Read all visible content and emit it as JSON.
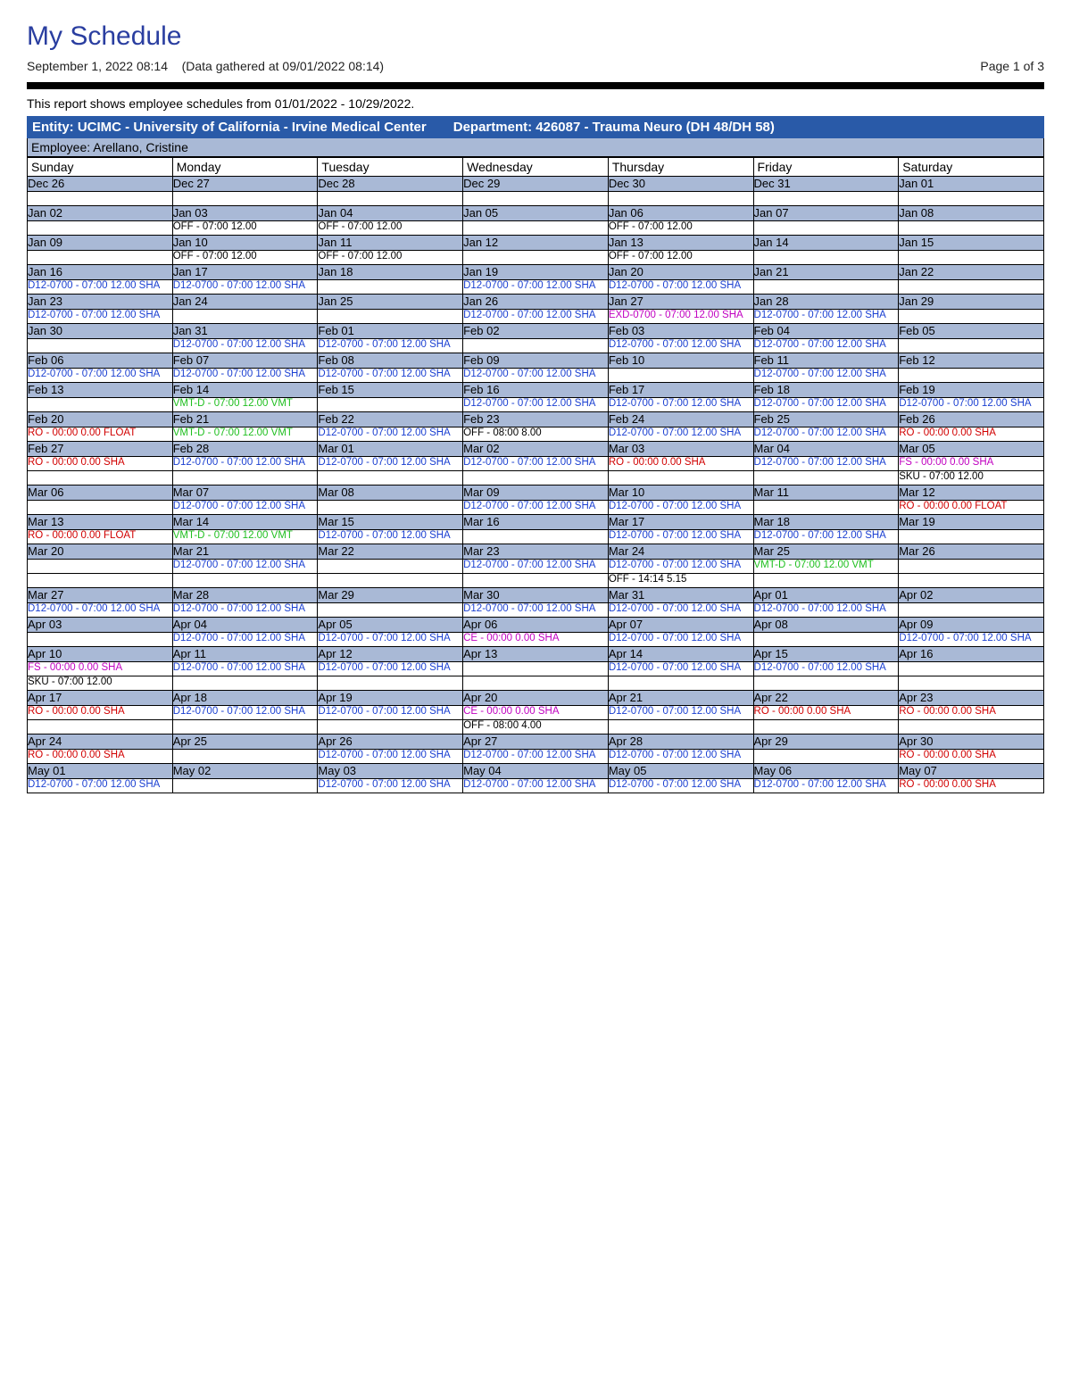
{
  "title": "My Schedule",
  "timestamp": "September 1, 2022 08:14",
  "gathered": "(Data gathered at 09/01/2022 08:14)",
  "page_label": "Page 1 of 3",
  "description": "This report shows employee schedules from 01/01/2022 - 10/29/2022.",
  "entity_label": "Entity: UCIMC - University of California - Irvine Medical Center",
  "department_label": "Department:  426087 - Trauma Neuro (DH 48/DH 58)",
  "employee_label": "Employee: Arellano, Cristine",
  "colors": {
    "title": "#2a3ea0",
    "entity_bg": "#295aa8",
    "date_bg": "#a9b9d6",
    "ev_blue": "#1a3fd1",
    "ev_red": "#d10000",
    "ev_green": "#1fbf1f",
    "ev_magenta": "#c000c0",
    "ev_black": "#000000"
  },
  "day_headers": [
    "Sunday",
    "Monday",
    "Tuesday",
    "Wednesday",
    "Thursday",
    "Friday",
    "Saturday"
  ],
  "weeks": [
    {
      "dates": [
        "Dec 26",
        "Dec 27",
        "Dec 28",
        "Dec 29",
        "Dec 30",
        "Dec 31",
        "Jan 01"
      ],
      "rows": [
        [
          "",
          "",
          "",
          "",
          "",
          "",
          ""
        ]
      ]
    },
    {
      "dates": [
        "Jan 02",
        "Jan 03",
        "Jan 04",
        "Jan 05",
        "Jan 06",
        "Jan 07",
        "Jan 08"
      ],
      "rows": [
        [
          "",
          {
            "t": "OFF - 07:00 12.00",
            "c": "black"
          },
          {
            "t": "OFF - 07:00 12.00",
            "c": "black"
          },
          "",
          {
            "t": "OFF - 07:00 12.00",
            "c": "black"
          },
          "",
          ""
        ]
      ]
    },
    {
      "dates": [
        "Jan 09",
        "Jan 10",
        "Jan 11",
        "Jan 12",
        "Jan 13",
        "Jan 14",
        "Jan 15"
      ],
      "rows": [
        [
          "",
          {
            "t": "OFF - 07:00 12.00",
            "c": "black"
          },
          {
            "t": "OFF - 07:00 12.00",
            "c": "black"
          },
          "",
          {
            "t": "OFF - 07:00 12.00",
            "c": "black"
          },
          "",
          ""
        ]
      ]
    },
    {
      "dates": [
        "Jan 16",
        "Jan 17",
        "Jan 18",
        "Jan 19",
        "Jan 20",
        "Jan 21",
        "Jan 22"
      ],
      "rows": [
        [
          {
            "t": "D12-0700 - 07:00 12.00  SHA",
            "c": "blue"
          },
          {
            "t": "D12-0700 - 07:00 12.00  SHA",
            "c": "blue"
          },
          "",
          {
            "t": "D12-0700 - 07:00 12.00  SHA",
            "c": "blue"
          },
          {
            "t": "D12-0700 - 07:00 12.00  SHA",
            "c": "blue"
          },
          "",
          ""
        ]
      ]
    },
    {
      "dates": [
        "Jan 23",
        "Jan 24",
        "Jan 25",
        "Jan 26",
        "Jan 27",
        "Jan 28",
        "Jan 29"
      ],
      "rows": [
        [
          {
            "t": "D12-0700 - 07:00 12.00  SHA",
            "c": "blue"
          },
          "",
          "",
          {
            "t": "D12-0700 - 07:00 12.00  SHA",
            "c": "blue"
          },
          {
            "t": "EXD-0700 - 07:00 12.00  SHA",
            "c": "magenta"
          },
          {
            "t": "D12-0700 - 07:00 12.00  SHA",
            "c": "blue"
          },
          ""
        ]
      ]
    },
    {
      "dates": [
        "Jan 30",
        "Jan 31",
        "Feb 01",
        "Feb 02",
        "Feb 03",
        "Feb 04",
        "Feb 05"
      ],
      "rows": [
        [
          "",
          {
            "t": "D12-0700 - 07:00 12.00  SHA",
            "c": "blue"
          },
          {
            "t": "D12-0700 - 07:00 12.00  SHA",
            "c": "blue"
          },
          "",
          {
            "t": "D12-0700 - 07:00 12.00  SHA",
            "c": "blue"
          },
          {
            "t": "D12-0700 - 07:00 12.00  SHA",
            "c": "blue"
          },
          ""
        ]
      ]
    },
    {
      "dates": [
        "Feb 06",
        "Feb 07",
        "Feb 08",
        "Feb 09",
        "Feb 10",
        "Feb 11",
        "Feb 12"
      ],
      "rows": [
        [
          {
            "t": "D12-0700 - 07:00 12.00  SHA",
            "c": "blue"
          },
          {
            "t": "D12-0700 - 07:00 12.00  SHA",
            "c": "blue"
          },
          {
            "t": "D12-0700 - 07:00 12.00  SHA",
            "c": "blue"
          },
          {
            "t": "D12-0700 - 07:00 12.00  SHA",
            "c": "blue"
          },
          "",
          {
            "t": "D12-0700 - 07:00 12.00  SHA",
            "c": "blue"
          },
          ""
        ]
      ]
    },
    {
      "dates": [
        "Feb 13",
        "Feb 14",
        "Feb 15",
        "Feb 16",
        "Feb 17",
        "Feb 18",
        "Feb 19"
      ],
      "rows": [
        [
          "",
          {
            "t": "VMT-D - 07:00 12.00  VMT",
            "c": "green"
          },
          "",
          {
            "t": "D12-0700 - 07:00 12.00  SHA",
            "c": "blue"
          },
          {
            "t": "D12-0700 - 07:00 12.00  SHA",
            "c": "blue"
          },
          {
            "t": "D12-0700 - 07:00 12.00  SHA",
            "c": "blue"
          },
          {
            "t": "D12-0700 - 07:00 12.00  SHA",
            "c": "blue"
          }
        ]
      ]
    },
    {
      "dates": [
        "Feb 20",
        "Feb 21",
        "Feb 22",
        "Feb 23",
        "Feb 24",
        "Feb 25",
        "Feb 26"
      ],
      "rows": [
        [
          {
            "t": "RO - 00:00 0.00  FLOAT",
            "c": "red"
          },
          {
            "t": "VMT-D - 07:00 12.00  VMT",
            "c": "green"
          },
          {
            "t": "D12-0700 - 07:00 12.00  SHA",
            "c": "blue"
          },
          {
            "t": "OFF - 08:00 8.00",
            "c": "black"
          },
          {
            "t": "D12-0700 - 07:00 12.00  SHA",
            "c": "blue"
          },
          {
            "t": "D12-0700 - 07:00 12.00  SHA",
            "c": "blue"
          },
          {
            "t": "RO - 00:00 0.00  SHA",
            "c": "red"
          }
        ]
      ]
    },
    {
      "dates": [
        "Feb 27",
        "Feb 28",
        "Mar 01",
        "Mar 02",
        "Mar 03",
        "Mar 04",
        "Mar 05"
      ],
      "rows": [
        [
          {
            "t": "RO - 00:00 0.00  SHA",
            "c": "red"
          },
          {
            "t": "D12-0700 - 07:00 12.00  SHA",
            "c": "blue"
          },
          {
            "t": "D12-0700 - 07:00 12.00  SHA",
            "c": "blue"
          },
          {
            "t": "D12-0700 - 07:00 12.00  SHA",
            "c": "blue"
          },
          {
            "t": "RO - 00:00 0.00  SHA",
            "c": "red"
          },
          {
            "t": "D12-0700 - 07:00 12.00  SHA",
            "c": "blue"
          },
          {
            "t": "FS - 00:00 0.00  SHA",
            "c": "magenta"
          }
        ],
        [
          "",
          "",
          "",
          "",
          "",
          "",
          {
            "t": "SKU - 07:00 12.00",
            "c": "black"
          }
        ]
      ]
    },
    {
      "dates": [
        "Mar 06",
        "Mar 07",
        "Mar 08",
        "Mar 09",
        "Mar 10",
        "Mar 11",
        "Mar 12"
      ],
      "rows": [
        [
          "",
          {
            "t": "D12-0700 - 07:00 12.00  SHA",
            "c": "blue"
          },
          "",
          {
            "t": "D12-0700 - 07:00 12.00  SHA",
            "c": "blue"
          },
          {
            "t": "D12-0700 - 07:00 12.00  SHA",
            "c": "blue"
          },
          "",
          {
            "t": "RO - 00:00 0.00  FLOAT",
            "c": "red"
          }
        ]
      ]
    },
    {
      "dates": [
        "Mar 13",
        "Mar 14",
        "Mar 15",
        "Mar 16",
        "Mar 17",
        "Mar 18",
        "Mar 19"
      ],
      "rows": [
        [
          {
            "t": "RO - 00:00 0.00  FLOAT",
            "c": "red"
          },
          {
            "t": "VMT-D - 07:00 12.00  VMT",
            "c": "green"
          },
          {
            "t": "D12-0700 - 07:00 12.00  SHA",
            "c": "blue"
          },
          "",
          {
            "t": "D12-0700 - 07:00 12.00  SHA",
            "c": "blue"
          },
          {
            "t": "D12-0700 - 07:00 12.00  SHA",
            "c": "blue"
          },
          ""
        ]
      ]
    },
    {
      "dates": [
        "Mar 20",
        "Mar 21",
        "Mar 22",
        "Mar 23",
        "Mar 24",
        "Mar 25",
        "Mar 26"
      ],
      "rows": [
        [
          "",
          {
            "t": "D12-0700 - 07:00 12.00  SHA",
            "c": "blue"
          },
          "",
          {
            "t": "D12-0700 - 07:00 12.00  SHA",
            "c": "blue"
          },
          {
            "t": "D12-0700 - 07:00 12.00  SHA",
            "c": "blue"
          },
          {
            "t": "VMT-D - 07:00 12.00  VMT",
            "c": "green"
          },
          ""
        ],
        [
          "",
          "",
          "",
          "",
          {
            "t": "OFF - 14:14 5.15",
            "c": "black"
          },
          "",
          ""
        ]
      ]
    },
    {
      "dates": [
        "Mar 27",
        "Mar 28",
        "Mar 29",
        "Mar 30",
        "Mar 31",
        "Apr 01",
        "Apr 02"
      ],
      "rows": [
        [
          {
            "t": "D12-0700 - 07:00 12.00  SHA",
            "c": "blue"
          },
          {
            "t": "D12-0700 - 07:00 12.00  SHA",
            "c": "blue"
          },
          "",
          {
            "t": "D12-0700 - 07:00 12.00  SHA",
            "c": "blue"
          },
          {
            "t": "D12-0700 - 07:00 12.00  SHA",
            "c": "blue"
          },
          {
            "t": "D12-0700 - 07:00 12.00  SHA",
            "c": "blue"
          },
          ""
        ]
      ]
    },
    {
      "dates": [
        "Apr 03",
        "Apr 04",
        "Apr 05",
        "Apr 06",
        "Apr 07",
        "Apr 08",
        "Apr 09"
      ],
      "rows": [
        [
          "",
          {
            "t": "D12-0700 - 07:00 12.00  SHA",
            "c": "blue"
          },
          {
            "t": "D12-0700 - 07:00 12.00  SHA",
            "c": "blue"
          },
          {
            "t": "CE - 00:00 0.00  SHA",
            "c": "magenta"
          },
          {
            "t": "D12-0700 - 07:00 12.00  SHA",
            "c": "blue"
          },
          "",
          {
            "t": "D12-0700 - 07:00 12.00  SHA",
            "c": "blue"
          }
        ]
      ]
    },
    {
      "dates": [
        "Apr 10",
        "Apr 11",
        "Apr 12",
        "Apr 13",
        "Apr 14",
        "Apr 15",
        "Apr 16"
      ],
      "rows": [
        [
          {
            "t": "FS - 00:00 0.00  SHA",
            "c": "magenta"
          },
          {
            "t": "D12-0700 - 07:00 12.00  SHA",
            "c": "blue"
          },
          {
            "t": "D12-0700 - 07:00 12.00  SHA",
            "c": "blue"
          },
          "",
          {
            "t": "D12-0700 - 07:00 12.00  SHA",
            "c": "blue"
          },
          {
            "t": "D12-0700 - 07:00 12.00  SHA",
            "c": "blue"
          },
          ""
        ],
        [
          {
            "t": "SKU - 07:00 12.00",
            "c": "black"
          },
          "",
          "",
          "",
          "",
          "",
          ""
        ]
      ]
    },
    {
      "dates": [
        "Apr 17",
        "Apr 18",
        "Apr 19",
        "Apr 20",
        "Apr 21",
        "Apr 22",
        "Apr 23"
      ],
      "rows": [
        [
          {
            "t": "RO - 00:00 0.00  SHA",
            "c": "red"
          },
          {
            "t": "D12-0700 - 07:00 12.00  SHA",
            "c": "blue"
          },
          {
            "t": "D12-0700 - 07:00 12.00  SHA",
            "c": "blue"
          },
          {
            "t": "CE - 00:00 0.00  SHA",
            "c": "magenta"
          },
          {
            "t": "D12-0700 - 07:00 12.00  SHA",
            "c": "blue"
          },
          {
            "t": "RO - 00:00 0.00  SHA",
            "c": "red"
          },
          {
            "t": "RO - 00:00 0.00  SHA",
            "c": "red"
          }
        ],
        [
          "",
          "",
          "",
          {
            "t": "OFF - 08:00 4.00",
            "c": "black"
          },
          "",
          "",
          ""
        ]
      ]
    },
    {
      "dates": [
        "Apr 24",
        "Apr 25",
        "Apr 26",
        "Apr 27",
        "Apr 28",
        "Apr 29",
        "Apr 30"
      ],
      "rows": [
        [
          {
            "t": "RO - 00:00 0.00  SHA",
            "c": "red"
          },
          "",
          {
            "t": "D12-0700 - 07:00 12.00  SHA",
            "c": "blue"
          },
          {
            "t": "D12-0700 - 07:00 12.00  SHA",
            "c": "blue"
          },
          {
            "t": "D12-0700 - 07:00 12.00  SHA",
            "c": "blue"
          },
          "",
          {
            "t": "RO - 00:00 0.00  SHA",
            "c": "red"
          }
        ]
      ]
    },
    {
      "dates": [
        "May 01",
        "May 02",
        "May 03",
        "May 04",
        "May 05",
        "May 06",
        "May 07"
      ],
      "rows": [
        [
          {
            "t": "D12-0700 - 07:00 12.00  SHA",
            "c": "blue"
          },
          "",
          {
            "t": "D12-0700 - 07:00 12.00  SHA",
            "c": "blue"
          },
          {
            "t": "D12-0700 - 07:00 12.00  SHA",
            "c": "blue"
          },
          {
            "t": "D12-0700 - 07:00 12.00  SHA",
            "c": "blue"
          },
          {
            "t": "D12-0700 - 07:00 12.00  SHA",
            "c": "blue"
          },
          {
            "t": "RO - 00:00 0.00  SHA",
            "c": "red"
          }
        ]
      ]
    }
  ]
}
